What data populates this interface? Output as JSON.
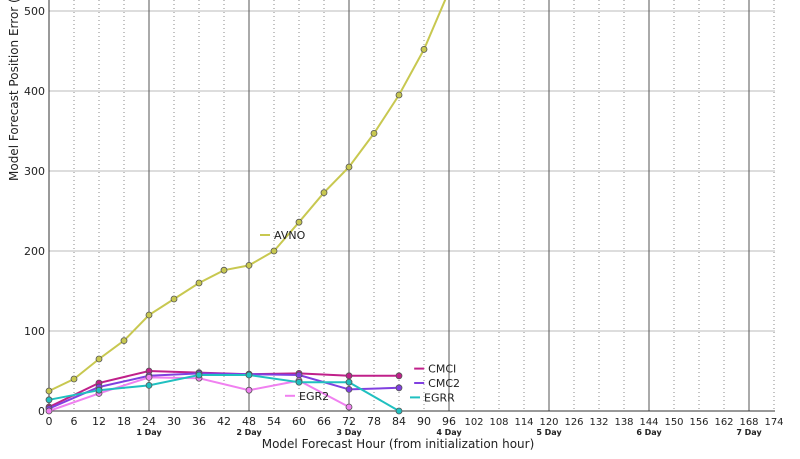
{
  "chart_data": {
    "type": "line",
    "xlabel": "Model Forecast Hour (from initialization hour)",
    "ylabel": "Model Forecast Position Error (",
    "xlim": [
      0,
      174
    ],
    "ylim": [
      0,
      500
    ],
    "y_ticks": [
      0,
      100,
      200,
      300,
      400,
      500
    ],
    "x_ticks": [
      0,
      6,
      12,
      18,
      24,
      30,
      36,
      42,
      48,
      54,
      60,
      66,
      72,
      78,
      84,
      90,
      96,
      102,
      108,
      114,
      120,
      126,
      132,
      138,
      144,
      150,
      156,
      162,
      168,
      174
    ],
    "day_labels": [
      {
        "x": 24,
        "label": "1 Day"
      },
      {
        "x": 48,
        "label": "2 Day"
      },
      {
        "x": 72,
        "label": "3 Day"
      },
      {
        "x": 96,
        "label": "4 Day"
      },
      {
        "x": 120,
        "label": "5 Day"
      },
      {
        "x": 144,
        "label": "6 Day"
      },
      {
        "x": 168,
        "label": "7 Day"
      }
    ],
    "grid": true,
    "series": [
      {
        "name": "AVNO",
        "color": "#c8c850",
        "x": [
          0,
          6,
          12,
          18,
          24,
          30,
          36,
          42,
          48,
          54,
          60,
          66,
          72,
          78,
          84,
          90,
          96
        ],
        "y": [
          25,
          40,
          65,
          88,
          120,
          140,
          160,
          176,
          182,
          200,
          236,
          273,
          305,
          347,
          395,
          452,
          525
        ],
        "label_at": {
          "x": 54,
          "y": 215
        }
      },
      {
        "name": "CMCI",
        "color": "#c0208a",
        "x": [
          0,
          12,
          24,
          36,
          48,
          60,
          72,
          84
        ],
        "y": [
          5,
          35,
          50,
          48,
          46,
          47,
          44,
          44
        ],
        "label_at": {
          "x": 91,
          "y": 48
        }
      },
      {
        "name": "CMC2",
        "color": "#8040e0",
        "x": [
          0,
          12,
          24,
          36,
          48,
          60,
          72,
          84
        ],
        "y": [
          3,
          30,
          44,
          47,
          46,
          45,
          27,
          29
        ],
        "label_at": {
          "x": 91,
          "y": 30
        }
      },
      {
        "name": "EGR2",
        "color": "#f080f0",
        "x": [
          0,
          12,
          24,
          36,
          48,
          60,
          72
        ],
        "y": [
          0,
          22,
          42,
          41,
          26,
          38,
          5
        ],
        "label_at": {
          "x": 60,
          "y": 14
        }
      },
      {
        "name": "EGRR",
        "color": "#20c0c0",
        "x": [
          0,
          12,
          24,
          36,
          48,
          60,
          72,
          84
        ],
        "y": [
          14,
          26,
          32,
          45,
          45,
          36,
          36,
          0
        ],
        "label_at": {
          "x": 90,
          "y": 12
        }
      }
    ]
  }
}
